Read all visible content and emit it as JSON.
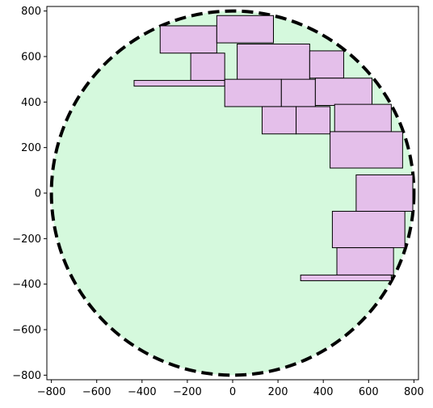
{
  "chart_data": {
    "type": "scatter",
    "title": "",
    "xlabel": "",
    "ylabel": "",
    "xlim": [
      -820,
      820
    ],
    "ylim": [
      -820,
      820
    ],
    "xticks": [
      -800,
      -600,
      -400,
      -200,
      0,
      200,
      400,
      600,
      800
    ],
    "yticks": [
      -800,
      -600,
      -400,
      -200,
      0,
      200,
      400,
      600,
      800
    ],
    "xtick_labels": [
      "−800",
      "−600",
      "−400",
      "−200",
      "0",
      "200",
      "400",
      "600",
      "800"
    ],
    "ytick_labels": [
      "−800",
      "−600",
      "−400",
      "−200",
      "0",
      "200",
      "400",
      "600",
      "800"
    ],
    "grid": false,
    "circle": {
      "center": [
        0,
        0
      ],
      "radius": 800,
      "fill_color": "#d5f9dd",
      "edge_color": "#000000",
      "edge_style": "dashed"
    },
    "rectangles": [
      {
        "x0": -320,
        "y0": 615,
        "x1": -70,
        "y1": 735
      },
      {
        "x0": -70,
        "y0": 660,
        "x1": 180,
        "y1": 780
      },
      {
        "x0": -185,
        "y0": 495,
        "x1": -35,
        "y1": 615
      },
      {
        "x0": 20,
        "y0": 495,
        "x1": 340,
        "y1": 655
      },
      {
        "x0": 340,
        "y0": 505,
        "x1": 490,
        "y1": 625
      },
      {
        "x0": -435,
        "y0": 470,
        "x1": -35,
        "y1": 495
      },
      {
        "x0": -35,
        "y0": 380,
        "x1": 215,
        "y1": 500
      },
      {
        "x0": 215,
        "y0": 380,
        "x1": 365,
        "y1": 500
      },
      {
        "x0": 365,
        "y0": 385,
        "x1": 615,
        "y1": 505
      },
      {
        "x0": 130,
        "y0": 260,
        "x1": 280,
        "y1": 380
      },
      {
        "x0": 280,
        "y0": 260,
        "x1": 430,
        "y1": 380
      },
      {
        "x0": 450,
        "y0": 270,
        "x1": 700,
        "y1": 390
      },
      {
        "x0": 430,
        "y0": 110,
        "x1": 750,
        "y1": 270
      },
      {
        "x0": 545,
        "y0": -80,
        "x1": 795,
        "y1": 80
      },
      {
        "x0": 440,
        "y0": -240,
        "x1": 760,
        "y1": -80
      },
      {
        "x0": 460,
        "y0": -360,
        "x1": 710,
        "y1": -240
      },
      {
        "x0": 300,
        "y0": -385,
        "x1": 700,
        "y1": -360
      }
    ],
    "rect_fill_color": "#e4bfea",
    "rect_edge_color": "#000000"
  }
}
